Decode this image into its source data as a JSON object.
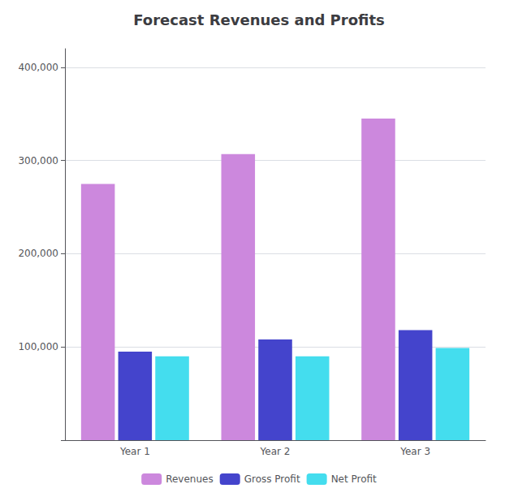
{
  "chart_data": {
    "type": "bar",
    "title": "Forecast Revenues and Profits",
    "categories": [
      "Year 1",
      "Year 2",
      "Year 3"
    ],
    "series": [
      {
        "name": "Revenues",
        "color": "#cc88dd",
        "values": [
          275000,
          307000,
          345000
        ]
      },
      {
        "name": "Gross Profit",
        "color": "#4444cc",
        "values": [
          95000,
          108000,
          118000
        ]
      },
      {
        "name": "Net Profit",
        "color": "#44ddee",
        "values": [
          90000,
          90000,
          99000
        ]
      }
    ],
    "ylim": [
      0,
      420000
    ],
    "yticks": [
      {
        "value": 0,
        "label": ""
      },
      {
        "value": 100000,
        "label": "100,000"
      },
      {
        "value": 200000,
        "label": "200,000"
      },
      {
        "value": 300000,
        "label": "300,000"
      },
      {
        "value": 400000,
        "label": "400,000"
      }
    ],
    "grid": true,
    "legend": "bottom"
  }
}
